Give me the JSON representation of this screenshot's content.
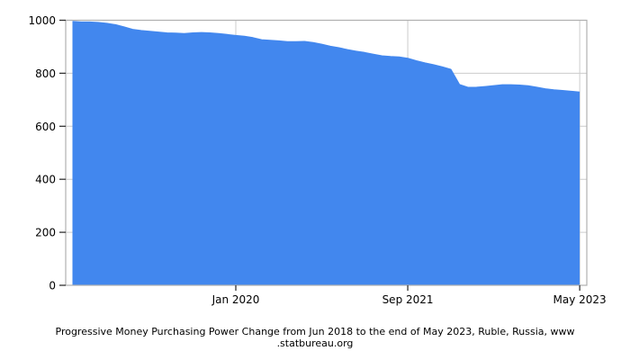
{
  "chart_data": {
    "type": "area",
    "title": "",
    "caption_line1": "Progressive Money Purchasing Power Change from Jun 2018 to the end of May 2023, Ruble, Russia, www",
    "caption_line2": ".statbureau.org",
    "x": [
      "Jun 2018",
      "Jul 2018",
      "Aug 2018",
      "Sep 2018",
      "Oct 2018",
      "Nov 2018",
      "Dec 2018",
      "Jan 2019",
      "Feb 2019",
      "Mar 2019",
      "Apr 2019",
      "May 2019",
      "Jun 2019",
      "Jul 2019",
      "Aug 2019",
      "Sep 2019",
      "Oct 2019",
      "Nov 2019",
      "Dec 2019",
      "Jan 2020",
      "Feb 2020",
      "Mar 2020",
      "Apr 2020",
      "May 2020",
      "Jun 2020",
      "Jul 2020",
      "Aug 2020",
      "Sep 2020",
      "Oct 2020",
      "Nov 2020",
      "Dec 2020",
      "Jan 2021",
      "Feb 2021",
      "Mar 2021",
      "Apr 2021",
      "May 2021",
      "Jun 2021",
      "Jul 2021",
      "Aug 2021",
      "Sep 2021",
      "Oct 2021",
      "Nov 2021",
      "Dec 2021",
      "Jan 2022",
      "Feb 2022",
      "Mar 2022",
      "Apr 2022",
      "May 2022",
      "Jun 2022",
      "Jul 2022",
      "Aug 2022",
      "Sep 2022",
      "Oct 2022",
      "Nov 2022",
      "Dec 2022",
      "Jan 2023",
      "Feb 2023",
      "Mar 2023",
      "Apr 2023",
      "May 2023"
    ],
    "values": [
      995,
      992.5,
      992.4,
      990.8,
      987.4,
      982.5,
      974.3,
      964.6,
      960.3,
      957.3,
      954.5,
      951.3,
      950.9,
      949.0,
      951.3,
      952.8,
      951.6,
      948.9,
      945.5,
      941.7,
      938.6,
      933.5,
      925.8,
      923.3,
      921.3,
      918.1,
      918.4,
      919.1,
      915.2,
      908.7,
      901.3,
      895.3,
      888.3,
      882.5,
      877.4,
      871.0,
      865.0,
      862.3,
      860.8,
      855.7,
      846.3,
      838.2,
      831.4,
      823.3,
      813.8,
      757.0,
      746.0,
      746.5,
      749.0,
      752.5,
      756.0,
      756.0,
      754.5,
      752.0,
      746.5,
      740.5,
      737.0,
      734.0,
      731.0,
      728.0
    ],
    "xlabel": "",
    "ylabel": "",
    "ylim": [
      0,
      1000
    ],
    "yticks": [
      0,
      200,
      400,
      600,
      800,
      1000
    ],
    "xticks": [
      {
        "label": "Jan 2020",
        "month_index": 19
      },
      {
        "label": "Sep 2021",
        "month_index": 39
      },
      {
        "label": "May 2023",
        "month_index": 59
      }
    ],
    "legend": "none",
    "grid": "on",
    "colors": {
      "area_fill": "#4287ee",
      "line": "#4287ee",
      "gridline": "#cccccc",
      "plot_border": "#b0b0b0",
      "tick_mark": "#333333",
      "text": "#000000",
      "background": "#ffffff"
    }
  }
}
